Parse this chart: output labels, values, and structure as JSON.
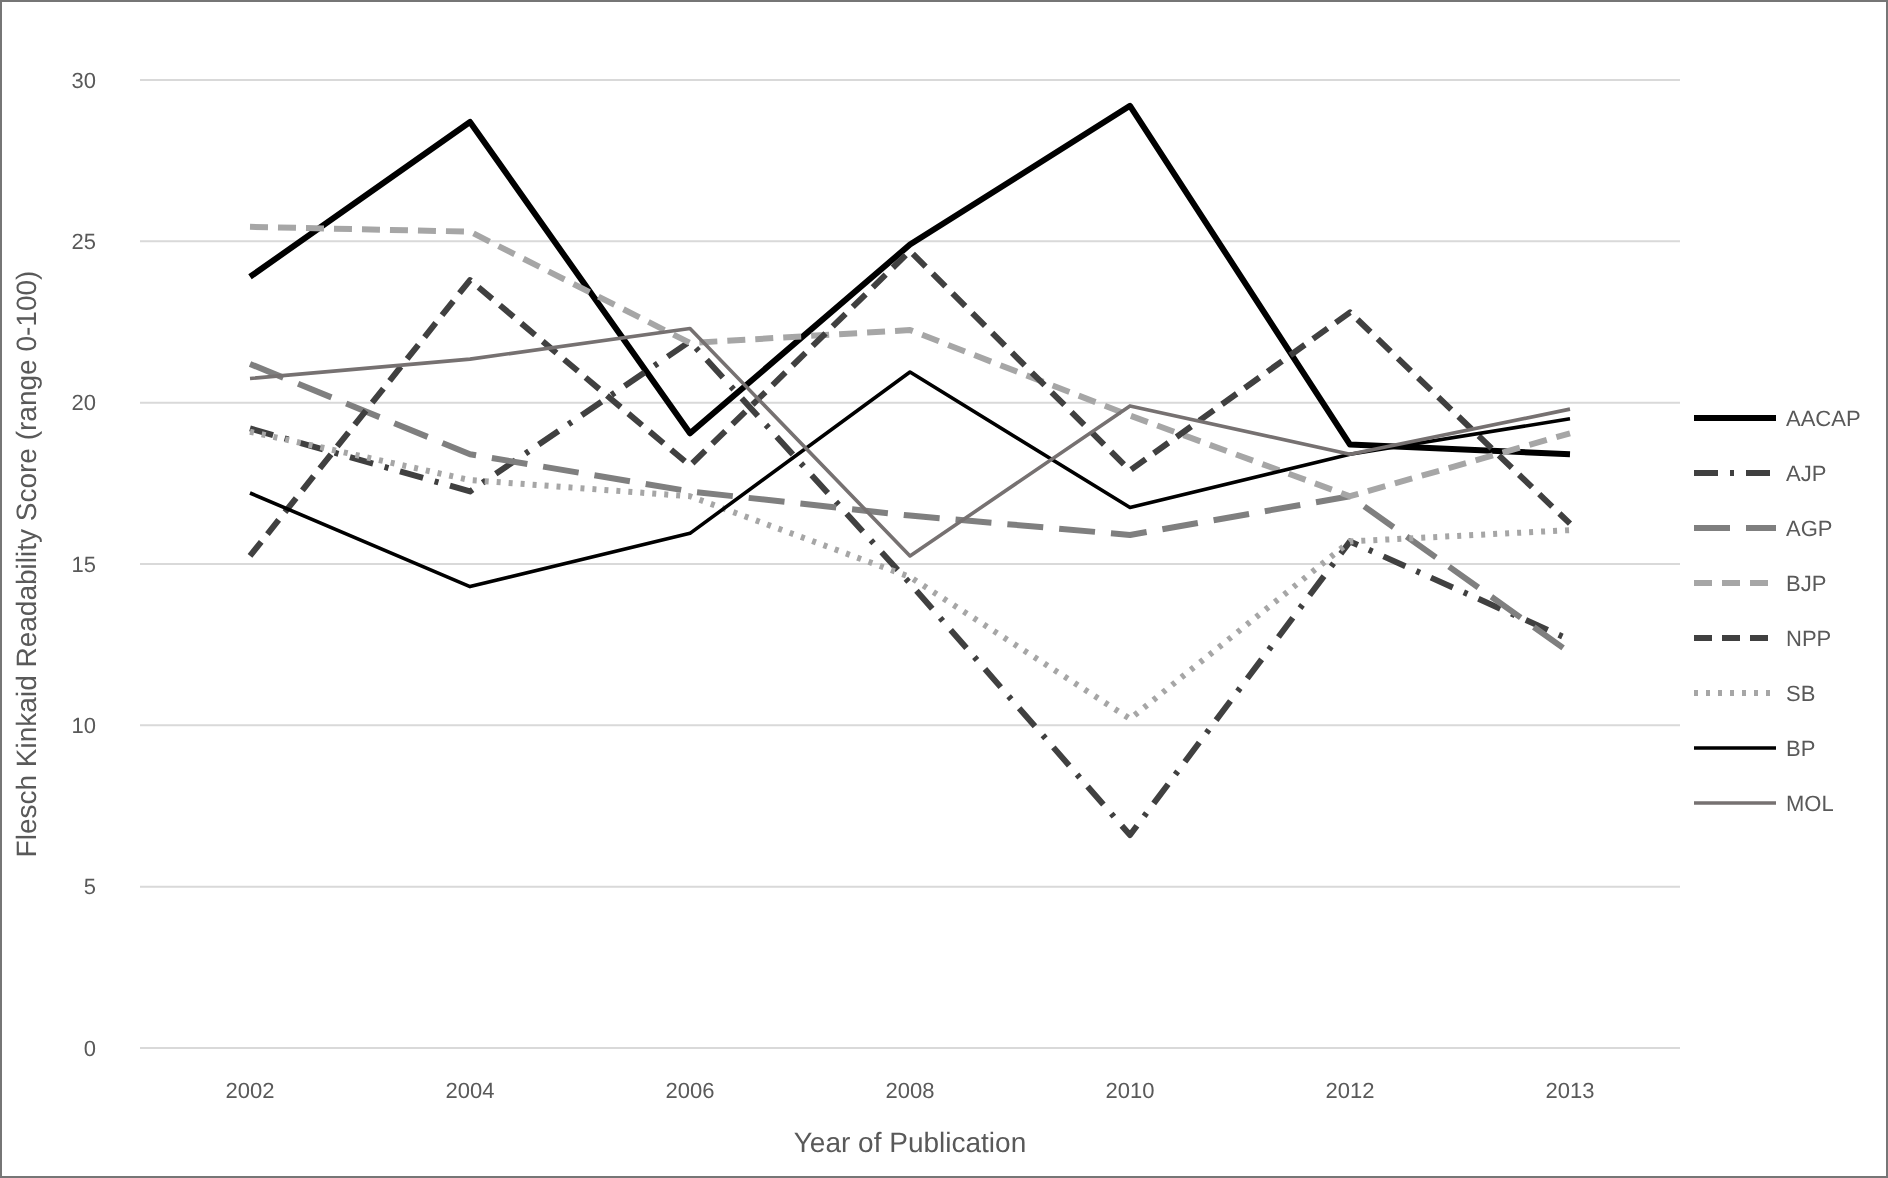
{
  "chart_data": {
    "type": "line",
    "xlabel": "Year of Publication",
    "ylabel": "Flesch Kinkaid Readability Score (range 0-100)",
    "categories": [
      "2002",
      "2004",
      "2006",
      "2008",
      "2010",
      "2012",
      "2013"
    ],
    "ylim": [
      0,
      30
    ],
    "yticks": [
      0,
      5,
      10,
      15,
      20,
      25,
      30
    ],
    "grid": "y",
    "legend": "right",
    "series": [
      {
        "name": "AACAP",
        "color": "#000000",
        "line_style": "solid",
        "values": [
          23.9,
          28.7,
          19.05,
          24.9,
          29.2,
          18.7,
          18.4
        ]
      },
      {
        "name": "AJP",
        "color": "#404040",
        "line_style": "dashdot",
        "values": [
          19.2,
          17.25,
          21.9,
          14.4,
          6.6,
          15.7,
          12.65
        ]
      },
      {
        "name": "AGP",
        "color": "#7f7f7f",
        "line_style": "longdash",
        "values": [
          21.2,
          18.4,
          17.25,
          16.5,
          15.9,
          17.1,
          12.25
        ]
      },
      {
        "name": "BJP",
        "color": "#a6a6a6",
        "line_style": "dashed",
        "values": [
          25.45,
          25.3,
          21.85,
          22.25,
          19.6,
          17.1,
          19.05
        ]
      },
      {
        "name": "NPP",
        "color": "#404040",
        "line_style": "dashed",
        "values": [
          15.25,
          23.8,
          18.05,
          24.7,
          17.9,
          22.8,
          16.25
        ]
      },
      {
        "name": "SB",
        "color": "#a6a6a6",
        "line_style": "dotted",
        "values": [
          19.1,
          17.6,
          17.1,
          14.6,
          10.2,
          15.7,
          16.05
        ]
      },
      {
        "name": "BP",
        "color": "#000000",
        "line_style": "solid",
        "values": [
          17.2,
          14.3,
          15.95,
          20.95,
          16.75,
          18.4,
          19.5
        ]
      },
      {
        "name": "MOL",
        "color": "#767171",
        "line_style": "solid",
        "values": [
          20.75,
          21.35,
          22.3,
          15.25,
          19.9,
          18.4,
          19.8
        ]
      }
    ]
  }
}
